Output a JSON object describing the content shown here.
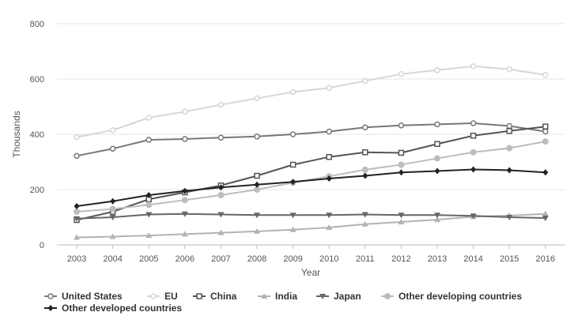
{
  "chart_data": {
    "type": "line",
    "xlabel": "Year",
    "ylabel": "Thousands",
    "ylim": [
      0,
      800
    ],
    "yticks": [
      "0",
      "200",
      "400",
      "600",
      "800"
    ],
    "x": [
      "2003",
      "2004",
      "2005",
      "2006",
      "2007",
      "2008",
      "2009",
      "2010",
      "2011",
      "2012",
      "2013",
      "2014",
      "2015",
      "2016"
    ],
    "grid": "horizontal",
    "legend_position": "bottom",
    "series": [
      {
        "name": "United States",
        "marker": "circle-open",
        "color": "#777777",
        "values": [
          322,
          348,
          380,
          383,
          388,
          392,
          400,
          410,
          425,
          432,
          436,
          440,
          430,
          410
        ]
      },
      {
        "name": "EU",
        "marker": "circle-open",
        "color": "#d6d6d6",
        "values": [
          390,
          415,
          460,
          482,
          507,
          530,
          553,
          568,
          593,
          618,
          632,
          646,
          635,
          615
        ]
      },
      {
        "name": "China",
        "marker": "square-open",
        "color": "#555555",
        "values": [
          90,
          120,
          165,
          190,
          215,
          250,
          290,
          318,
          335,
          333,
          365,
          395,
          412,
          428
        ]
      },
      {
        "name": "India",
        "marker": "triangle-up",
        "color": "#b3b3b3",
        "values": [
          27,
          30,
          34,
          39,
          44,
          49,
          55,
          63,
          75,
          83,
          91,
          102,
          106,
          112
        ]
      },
      {
        "name": "Japan",
        "marker": "triangle-down",
        "color": "#666666",
        "values": [
          95,
          100,
          110,
          112,
          110,
          108,
          108,
          108,
          110,
          108,
          108,
          105,
          100,
          97
        ]
      },
      {
        "name": "Other developing countries",
        "marker": "circle-filled",
        "color": "#bdbdbd",
        "values": [
          120,
          130,
          145,
          162,
          180,
          200,
          225,
          248,
          272,
          290,
          313,
          335,
          350,
          374
        ]
      },
      {
        "name": "Other developed countries",
        "marker": "diamond-filled",
        "color": "#222222",
        "values": [
          140,
          158,
          180,
          195,
          208,
          218,
          228,
          240,
          250,
          262,
          267,
          273,
          270,
          262
        ]
      }
    ]
  }
}
